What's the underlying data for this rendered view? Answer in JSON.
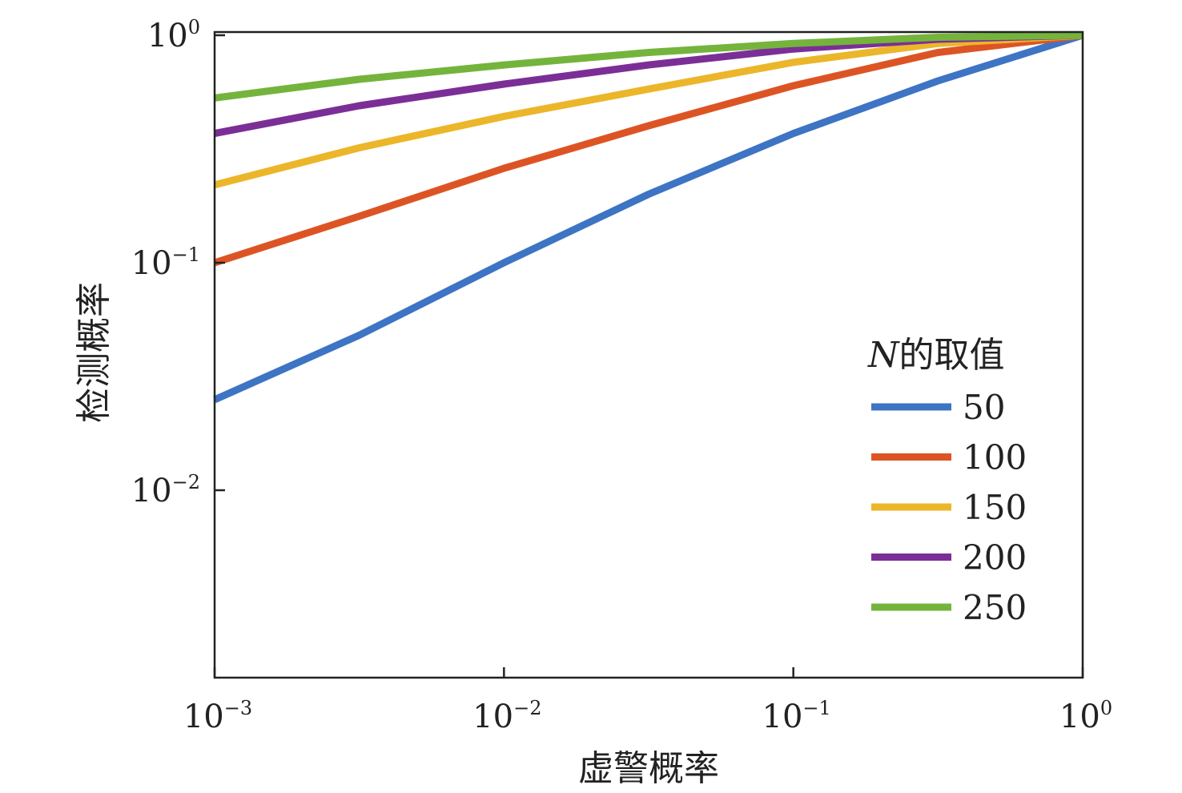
{
  "chart_data": {
    "type": "line",
    "title": "",
    "xlabel": "虚警概率",
    "ylabel": "检测概率",
    "xscale": "log",
    "yscale": "log",
    "xlim": [
      0.001,
      1
    ],
    "ylim": [
      0.0015,
      1
    ],
    "grid": false,
    "x_ticks": [
      {
        "base": "10",
        "exp": "−3"
      },
      {
        "base": "10",
        "exp": "−2"
      },
      {
        "base": "10",
        "exp": "−1"
      },
      {
        "base": "10",
        "exp": "0"
      }
    ],
    "x_tick_values": [
      0.001,
      0.01,
      0.1,
      1
    ],
    "y_ticks": [
      {
        "base": "10",
        "exp": "−2"
      },
      {
        "base": "10",
        "exp": "−1"
      },
      {
        "base": "10",
        "exp": "0"
      }
    ],
    "y_tick_values": [
      0.01,
      0.1,
      1
    ],
    "legend": {
      "title_italic": "N",
      "title_rest": "的取值",
      "position": "lower-right"
    },
    "x": [
      0.001,
      0.00316,
      0.01,
      0.0316,
      0.1,
      0.316,
      1
    ],
    "series": [
      {
        "name": "50",
        "color": "#3d74c4",
        "values": [
          0.025,
          0.048,
          0.1,
          0.2,
          0.37,
          0.63,
          1
        ]
      },
      {
        "name": "100",
        "color": "#dd5424",
        "values": [
          0.1,
          0.16,
          0.26,
          0.4,
          0.6,
          0.84,
          1
        ]
      },
      {
        "name": "150",
        "color": "#ecb62a",
        "values": [
          0.22,
          0.32,
          0.44,
          0.58,
          0.76,
          0.92,
          1
        ]
      },
      {
        "name": "200",
        "color": "#7b2f96",
        "values": [
          0.37,
          0.49,
          0.61,
          0.74,
          0.87,
          0.96,
          1
        ]
      },
      {
        "name": "250",
        "color": "#74b43c",
        "values": [
          0.53,
          0.64,
          0.74,
          0.84,
          0.92,
          0.98,
          1
        ]
      }
    ]
  }
}
